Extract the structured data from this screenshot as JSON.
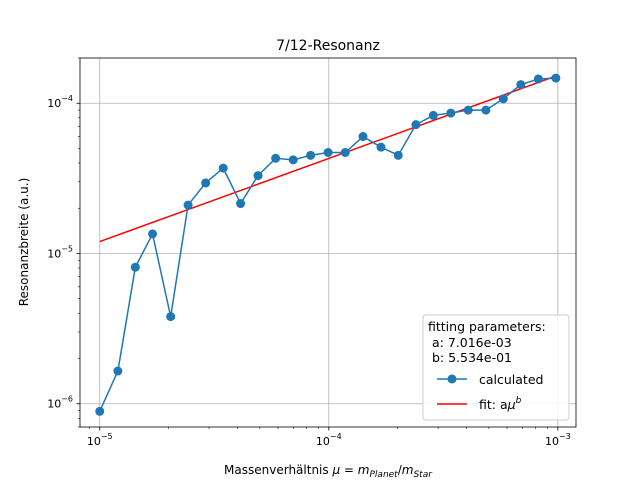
{
  "chart_data": {
    "type": "line",
    "title": "7/12-Resonanz",
    "xlabel": {
      "prefix": "Massenverhältnis ",
      "mu": "μ",
      "eq": " = ",
      "m1": "m",
      "sub1": "Planet",
      "slash": "/",
      "m2": "m",
      "sub2": "Star"
    },
    "ylabel": "Resonanzbreite (a.u.)",
    "x_scale": "log",
    "y_scale": "log",
    "xlim": [
      8.2e-06,
      0.0012
    ],
    "ylim": [
      7e-07,
      0.0002
    ],
    "grid": true,
    "x_ticks": [
      {
        "value": 1e-05,
        "base": "10",
        "exp": "−5"
      },
      {
        "value": 0.0001,
        "base": "10",
        "exp": "−4"
      },
      {
        "value": 0.001,
        "base": "10",
        "exp": "−3"
      }
    ],
    "y_ticks": [
      {
        "value": 1e-06,
        "base": "10",
        "exp": "−6"
      },
      {
        "value": 1e-05,
        "base": "10",
        "exp": "−5"
      },
      {
        "value": 0.0001,
        "base": "10",
        "exp": "−4"
      }
    ],
    "legend": {
      "placement": "lower-right",
      "title": "fitting parameters:",
      "param_a": " a: 7.016e-03",
      "param_b": " b: 5.534e-01",
      "entries": {
        "calculated": "calculated",
        "fit": {
          "prefix": "fit: a",
          "mu": "μ",
          "exp": "b"
        }
      }
    },
    "series": [
      {
        "name": "calculated",
        "color": "#1f77b4",
        "marker": "circle",
        "x": [
          1e-05,
          1.2e-05,
          1.43e-05,
          1.7e-05,
          2.04e-05,
          2.43e-05,
          2.9e-05,
          3.46e-05,
          4.12e-05,
          4.91e-05,
          5.86e-05,
          6.99e-05,
          8.33e-05,
          9.93e-05,
          0.000118,
          0.000141,
          0.000169,
          0.000201,
          0.00024,
          0.000286,
          0.000341,
          0.000406,
          0.000485,
          0.000578,
          0.000689,
          0.000822,
          0.00098
        ],
        "y": [
          8.9e-07,
          1.65e-06,
          8.1e-06,
          1.35e-05,
          3.8e-06,
          2.1e-05,
          2.95e-05,
          3.7e-05,
          2.15e-05,
          3.3e-05,
          4.3e-05,
          4.2e-05,
          4.5e-05,
          4.7e-05,
          4.7e-05,
          6e-05,
          5.1e-05,
          4.5e-05,
          7.2e-05,
          8.3e-05,
          8.6e-05,
          9e-05,
          9e-05,
          0.000107,
          0.000133,
          0.000145,
          0.000147
        ]
      },
      {
        "name": "fit",
        "color": "#ff0000",
        "type": "power-law",
        "a": 0.007016,
        "b": 0.5534,
        "x_range": [
          1e-05,
          0.001
        ]
      }
    ]
  }
}
